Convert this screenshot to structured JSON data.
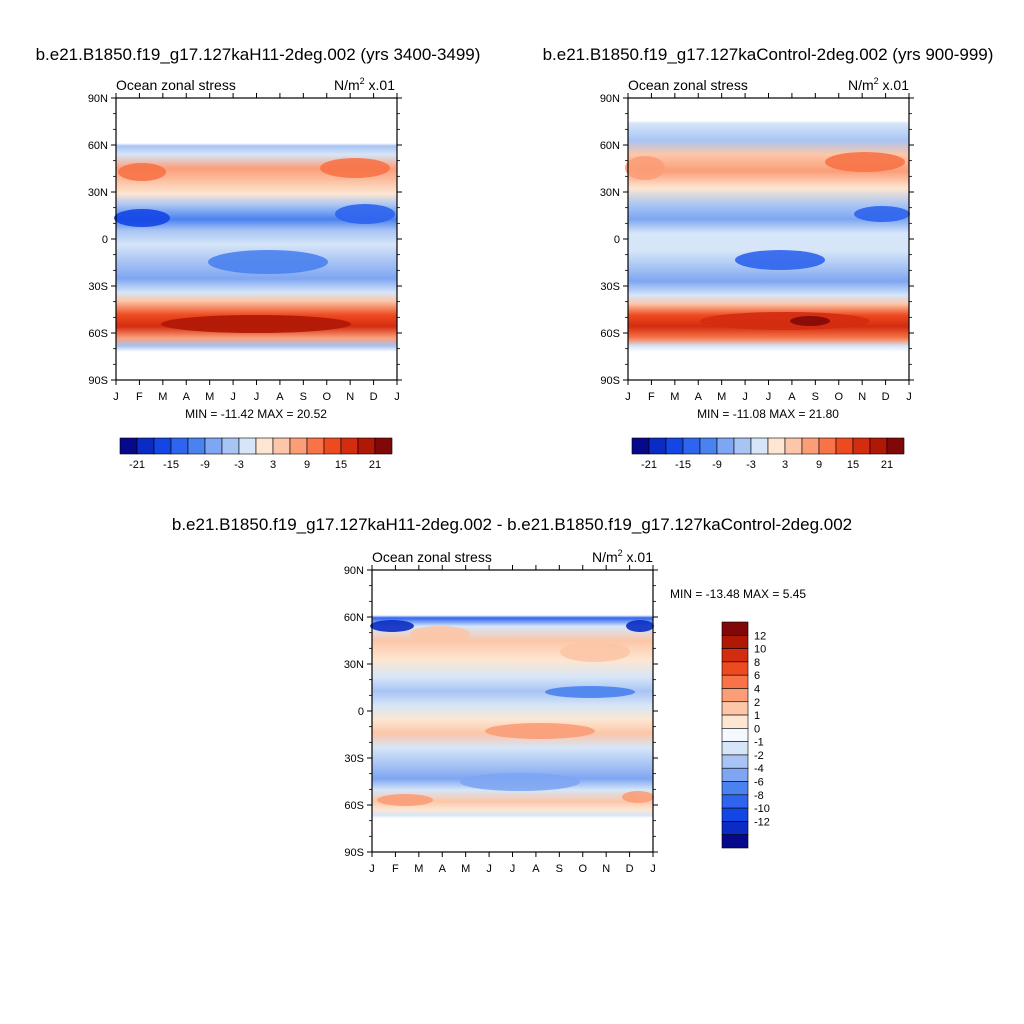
{
  "panels": [
    {
      "title": "b.e21.B1850.f19_g17.127kaH11-2deg.002 (yrs 3400-3499)",
      "left_label": "Ocean zonal stress",
      "right_label_base": "N/m",
      "right_label_exp": "2",
      "right_label_tail": " x.01",
      "minmax": "MIN = -11.42 MAX =  20.52"
    },
    {
      "title": "b.e21.B1850.f19_g17.127kaControl-2deg.002 (yrs 900-999)",
      "left_label": "Ocean zonal stress",
      "right_label_base": "N/m",
      "right_label_exp": "2",
      "right_label_tail": " x.01",
      "minmax": "MIN = -11.08 MAX =  21.80"
    },
    {
      "title": "b.e21.B1850.f19_g17.127kaH11-2deg.002 - b.e21.B1850.f19_g17.127kaControl-2deg.002",
      "left_label": "Ocean zonal stress",
      "right_label_base": "N/m",
      "right_label_exp": "2",
      "right_label_tail": " x.01",
      "minmax": "MIN = -13.48 MAX =   5.45"
    }
  ],
  "chart_data": [
    {
      "type": "heatmap",
      "x_ticks": [
        "J",
        "F",
        "M",
        "A",
        "M",
        "J",
        "J",
        "A",
        "S",
        "O",
        "N",
        "D",
        "J"
      ],
      "y_ticks": [
        "90N",
        "60N",
        "30N",
        "0",
        "30S",
        "60S",
        "90S"
      ],
      "ylim": [
        -90,
        90
      ],
      "colorbar_labels": [
        "-21",
        "-15",
        "-9",
        "-3",
        "3",
        "9",
        "15",
        "21"
      ],
      "colorbar_colors": [
        "#08088c",
        "#0a2cc4",
        "#1446e6",
        "#2e64ee",
        "#4a82f0",
        "#7ea6f2",
        "#a8c4f4",
        "#d6e6f8",
        "#fde6d2",
        "#fcc6a8",
        "#fb9e78",
        "#f87448",
        "#ee4a20",
        "#d42c10",
        "#b01806",
        "#800808"
      ],
      "min": -11.42,
      "max": 20.52,
      "features": [
        {
          "lat_from": -62,
          "lat_to": -45,
          "value": 18,
          "peak_month": 7
        },
        {
          "lat_from": -40,
          "lat_to": -30,
          "value": 4
        },
        {
          "lat_from": -25,
          "lat_to": -5,
          "value": -6
        },
        {
          "lat_from": 5,
          "lat_to": 25,
          "value": -10
        },
        {
          "lat_from": 30,
          "lat_to": 55,
          "value": 8
        },
        {
          "lat_from": 55,
          "lat_to": 60,
          "value": -5
        }
      ]
    },
    {
      "type": "heatmap",
      "x_ticks": [
        "J",
        "F",
        "M",
        "A",
        "M",
        "J",
        "J",
        "A",
        "S",
        "O",
        "N",
        "D",
        "J"
      ],
      "y_ticks": [
        "90N",
        "60N",
        "30N",
        "0",
        "30S",
        "60S",
        "90S"
      ],
      "ylim": [
        -90,
        90
      ],
      "colorbar_labels": [
        "-21",
        "-15",
        "-9",
        "-3",
        "3",
        "9",
        "15",
        "21"
      ],
      "colorbar_colors": [
        "#08088c",
        "#0a2cc4",
        "#1446e6",
        "#2e64ee",
        "#4a82f0",
        "#7ea6f2",
        "#a8c4f4",
        "#d6e6f8",
        "#fde6d2",
        "#fcc6a8",
        "#fb9e78",
        "#f87448",
        "#ee4a20",
        "#d42c10",
        "#b01806",
        "#800808"
      ],
      "min": -11.08,
      "max": 21.8,
      "features": [
        {
          "lat_from": -62,
          "lat_to": -45,
          "value": 19,
          "peak_month": 8
        },
        {
          "lat_from": -40,
          "lat_to": -30,
          "value": 4
        },
        {
          "lat_from": -25,
          "lat_to": -5,
          "value": -6
        },
        {
          "lat_from": 5,
          "lat_to": 25,
          "value": -9
        },
        {
          "lat_from": 30,
          "lat_to": 60,
          "value": 9
        },
        {
          "lat_from": 60,
          "lat_to": 75,
          "value": -3
        }
      ]
    },
    {
      "type": "heatmap",
      "x_ticks": [
        "J",
        "F",
        "M",
        "A",
        "M",
        "J",
        "J",
        "A",
        "S",
        "O",
        "N",
        "D",
        "J"
      ],
      "y_ticks": [
        "90N",
        "60N",
        "30N",
        "0",
        "30S",
        "60S",
        "90S"
      ],
      "ylim": [
        -90,
        90
      ],
      "colorbar_labels": [
        "12",
        "10",
        "8",
        "6",
        "4",
        "2",
        "1",
        "0",
        "-1",
        "-2",
        "-4",
        "-6",
        "-8",
        "-10",
        "-12"
      ],
      "colorbar_colors": [
        "#800808",
        "#b01806",
        "#d42c10",
        "#ee4a20",
        "#f87448",
        "#fb9e78",
        "#fcc6a8",
        "#fde6d2",
        "#f4f8ff",
        "#d6e6f8",
        "#a8c4f4",
        "#7ea6f2",
        "#4a82f0",
        "#2e64ee",
        "#1446e6",
        "#0a2cc4",
        "#08088c"
      ],
      "min": -13.48,
      "max": 5.45,
      "features": [
        {
          "lat_from": 55,
          "lat_to": 60,
          "value": -10
        },
        {
          "lat_from": 30,
          "lat_to": 55,
          "value": 2
        },
        {
          "lat_from": 10,
          "lat_to": 25,
          "value": -3
        },
        {
          "lat_from": -15,
          "lat_to": 0,
          "value": 2
        },
        {
          "lat_from": -45,
          "lat_to": -25,
          "value": -3
        },
        {
          "lat_from": -60,
          "lat_to": -50,
          "value": 2
        }
      ]
    }
  ]
}
